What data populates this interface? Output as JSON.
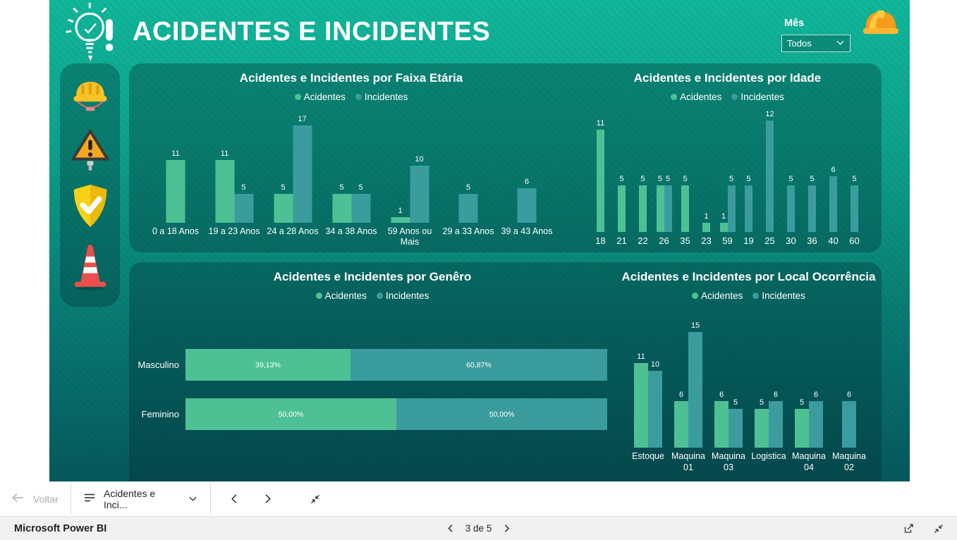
{
  "header": {
    "title": "ACIDENTES E INCIDENTES",
    "logo_icon": "lightbulb-alert-icon",
    "right_icon": "safety-helmet-icon"
  },
  "filter": {
    "label": "Mês",
    "value": "Todos",
    "icon": "chevron-down-icon"
  },
  "sidebar": {
    "icons": [
      "hard-hat-icon",
      "warning-triangle-icon",
      "shield-check-icon",
      "traffic-cone-icon"
    ]
  },
  "colors": {
    "acidentes": "#4EC194",
    "incidentes": "#3B9C9D",
    "background_top": "#11B79B",
    "background_bottom": "#06585D",
    "card": "rgba(0,40,46,0.32)"
  },
  "chart_data": [
    {
      "id": "faixa-etaria",
      "type": "bar",
      "title": "Acidentes e Incidentes por Faixa Etária",
      "legend": [
        "Acidentes",
        "Incidentes"
      ],
      "categories": [
        "0 a 18 Anos",
        "19 a 23 Anos",
        "24 a 28 Anos",
        "34 a 38 Anos",
        "59 Anos ou Mais",
        "29 a 33 Anos",
        "39 a 43 Anos"
      ],
      "series": [
        {
          "name": "Acidentes",
          "color": "#4EC194",
          "values": [
            11,
            11,
            5,
            5,
            1,
            null,
            null
          ]
        },
        {
          "name": "Incidentes",
          "color": "#3B9C9D",
          "values": [
            null,
            5,
            17,
            5,
            10,
            5,
            6
          ]
        }
      ],
      "ylim": [
        0,
        17
      ],
      "grid": false,
      "legend_position": "top"
    },
    {
      "id": "idade",
      "type": "bar",
      "title": "Acidentes e Incidentes por Idade",
      "legend": [
        "Acidentes",
        "Incidentes"
      ],
      "categories": [
        "18",
        "21",
        "22",
        "26",
        "35",
        "23",
        "59",
        "19",
        "25",
        "30",
        "36",
        "40",
        "60"
      ],
      "series": [
        {
          "name": "Acidentes",
          "color": "#4EC194",
          "values": [
            11,
            5,
            5,
            5,
            5,
            1,
            1,
            null,
            null,
            null,
            null,
            null,
            null
          ]
        },
        {
          "name": "Incidentes",
          "color": "#3B9C9D",
          "values": [
            null,
            null,
            null,
            5,
            null,
            null,
            5,
            5,
            12,
            5,
            5,
            6,
            5
          ]
        }
      ],
      "ylim": [
        0,
        12
      ],
      "grid": false,
      "legend_position": "top"
    },
    {
      "id": "genero",
      "type": "stacked-bar-100-horizontal",
      "title": "Acidentes e Incidentes por Genêro",
      "legend": [
        "Acidentes",
        "Incidentes"
      ],
      "categories": [
        "Masculino",
        "Feminino"
      ],
      "series": [
        {
          "name": "Acidentes",
          "color": "#4EC194",
          "values": [
            39.13,
            50.0
          ],
          "labels": [
            "39,13%",
            "50,00%"
          ]
        },
        {
          "name": "Incidentes",
          "color": "#3B9C9D",
          "values": [
            60.87,
            50.0
          ],
          "labels": [
            "60,87%",
            "50,00%"
          ]
        }
      ],
      "grid": false,
      "legend_position": "top"
    },
    {
      "id": "local-ocorrencia",
      "type": "bar",
      "title": "Acidentes e Incidentes por Local Ocorrência",
      "legend": [
        "Acidentes",
        "Incidentes"
      ],
      "categories": [
        "Estoque",
        "Maquina 01",
        "Maquina 03",
        "Logistica",
        "Maquina 04",
        "Maquina 02"
      ],
      "series": [
        {
          "name": "Acidentes",
          "color": "#4EC194",
          "values": [
            11,
            6,
            6,
            5,
            5,
            null
          ]
        },
        {
          "name": "Incidentes",
          "color": "#3B9C9D",
          "values": [
            10,
            15,
            5,
            6,
            6,
            6
          ]
        }
      ],
      "ylim": [
        0,
        15
      ],
      "grid": false,
      "legend_position": "top"
    }
  ],
  "navbar": {
    "back_label": "Voltar",
    "report_name": "Acidentes e Inci...",
    "icons": [
      "back-arrow-icon",
      "pages-menu-icon",
      "chevron-down-icon",
      "chevron-left-icon",
      "chevron-right-icon",
      "collapse-icon"
    ]
  },
  "footer": {
    "brand": "Microsoft Power BI",
    "page_indicator": "3 de 5",
    "icons": [
      "chevron-left-icon",
      "chevron-right-icon",
      "share-icon",
      "collapse-icon"
    ]
  }
}
